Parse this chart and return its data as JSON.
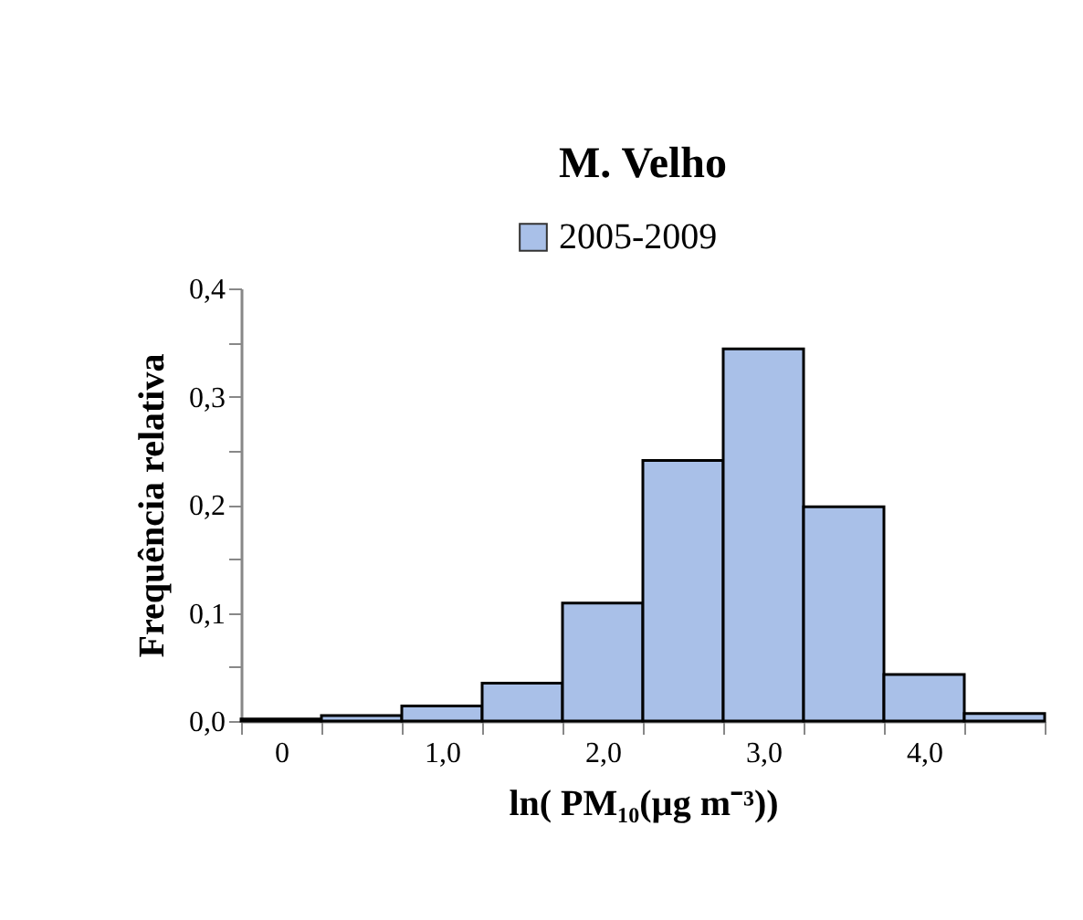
{
  "chart_data": {
    "type": "histogram",
    "title": "M. Velho",
    "xlabel": "ln( PM₁₀(µg m⁻³))",
    "ylabel": "Frequência relativa",
    "bins": [
      -0.25,
      0.25,
      0.75,
      1.25,
      1.75,
      2.25,
      2.75,
      3.25,
      3.75,
      4.25,
      4.75
    ],
    "series": [
      {
        "name": "2005-2009",
        "color": "#a9c0e8",
        "values": [
          0.002,
          0.005,
          0.014,
          0.035,
          0.109,
          0.241,
          0.344,
          0.198,
          0.043,
          0.007
        ]
      }
    ],
    "xlim": [
      -0.25,
      4.75
    ],
    "xticks": [
      {
        "value": 0,
        "label": "0"
      },
      {
        "value": 1,
        "label": "1,0"
      },
      {
        "value": 2,
        "label": "2,0"
      },
      {
        "value": 3,
        "label": "3,0"
      },
      {
        "value": 4,
        "label": "4,0"
      },
      {
        "value": -0.25,
        "label": null
      },
      {
        "value": 0.25,
        "label": null
      },
      {
        "value": 0.75,
        "label": null
      },
      {
        "value": 1.25,
        "label": null
      },
      {
        "value": 1.75,
        "label": null
      },
      {
        "value": 2.25,
        "label": null
      },
      {
        "value": 2.75,
        "label": null
      },
      {
        "value": 3.25,
        "label": null
      },
      {
        "value": 3.75,
        "label": null
      },
      {
        "value": 4.25,
        "label": null
      },
      {
        "value": 4.75,
        "label": null
      }
    ],
    "ylim": [
      0,
      0.4
    ],
    "yticks": [
      {
        "value": 0,
        "label": "0,0"
      },
      {
        "value": 0.1,
        "label": "0,1"
      },
      {
        "value": 0.2,
        "label": "0,2"
      },
      {
        "value": 0.3,
        "label": "0,3"
      },
      {
        "value": 0.4,
        "label": "0,4"
      },
      {
        "value": 0.05,
        "label": null
      },
      {
        "value": 0.15,
        "label": null
      },
      {
        "value": 0.25,
        "label": null
      },
      {
        "value": 0.35,
        "label": null
      }
    ],
    "legend": "top",
    "grid": false
  }
}
